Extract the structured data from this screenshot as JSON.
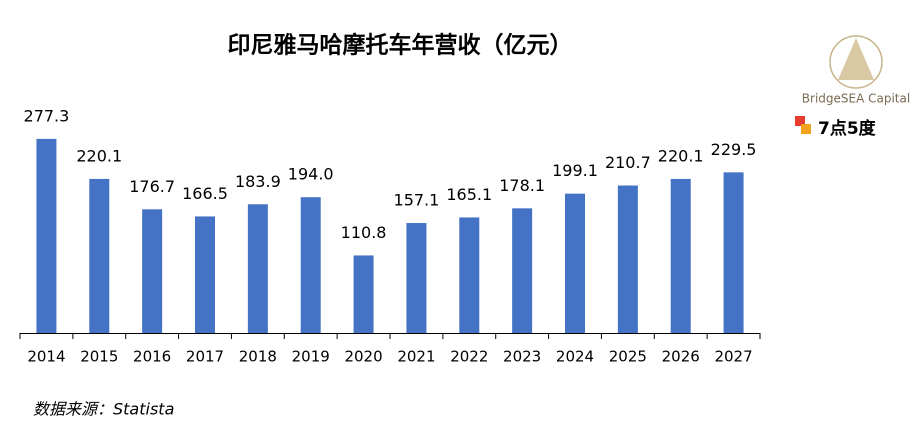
{
  "chart_data": {
    "type": "bar",
    "title": "印尼雅马哈摩托车年营收（亿元）",
    "categories": [
      "2014",
      "2015",
      "2016",
      "2017",
      "2018",
      "2019",
      "2020",
      "2021",
      "2022",
      "2023",
      "2024",
      "2025",
      "2026",
      "2027"
    ],
    "values": [
      277.3,
      220.1,
      176.7,
      166.5,
      183.9,
      194.0,
      110.8,
      157.1,
      165.1,
      178.1,
      199.1,
      210.7,
      220.1,
      229.5
    ],
    "value_labels": [
      "277.3",
      "220.1",
      "176.7",
      "166.5",
      "183.9",
      "194.0",
      "110.8",
      "157.1",
      "165.1",
      "178.1",
      "199.1",
      "210.7",
      "220.1",
      "229.5"
    ],
    "color": "#4472c4",
    "source": "数据来源：Statista",
    "logos": [
      "BridgeSEA Capital",
      "7点5度"
    ]
  }
}
